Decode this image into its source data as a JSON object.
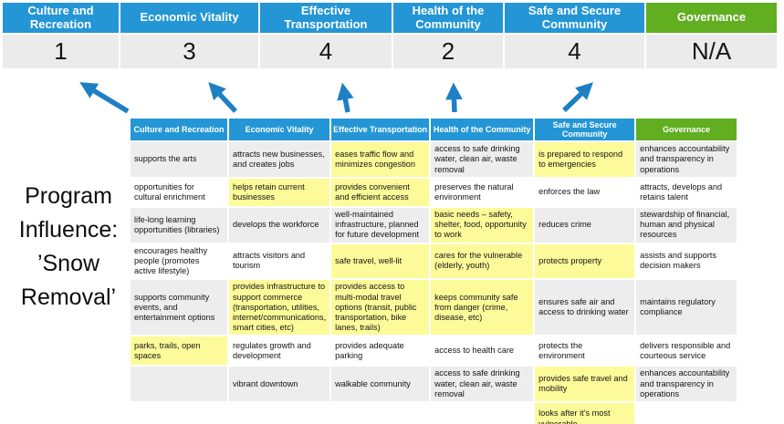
{
  "colors": {
    "header_blue": "#2496D5",
    "header_green": "#61AE21",
    "highlight_yellow": "#FDFB99",
    "row_gray": "#EDEDED",
    "score_bg": "#EBEBEB",
    "arrow_blue": "#1E7FC4"
  },
  "summary": {
    "columns": [
      {
        "label": "Culture and Recreation",
        "score": "1",
        "style": "blue"
      },
      {
        "label": "Economic Vitality",
        "score": "3",
        "style": "blue"
      },
      {
        "label": "Effective Transportation",
        "score": "4",
        "style": "blue"
      },
      {
        "label": "Health of the Community",
        "score": "2",
        "style": "blue"
      },
      {
        "label": "Safe and Secure Community",
        "score": "4",
        "style": "blue"
      },
      {
        "label": "Governance",
        "score": "N/A",
        "style": "green"
      }
    ]
  },
  "program_label": {
    "lines": [
      "Program",
      "Influence:",
      "’Snow",
      "Removal’"
    ]
  },
  "matrix": {
    "headers": [
      {
        "label": "Culture and Recreation",
        "style": "blue"
      },
      {
        "label": "Economic Vitality",
        "style": "blue"
      },
      {
        "label": "Effective Transportation",
        "style": "blue"
      },
      {
        "label": "Health of the Community",
        "style": "blue"
      },
      {
        "label": "Safe and Secure Community",
        "style": "blue"
      },
      {
        "label": "Governance",
        "style": "green"
      }
    ],
    "rows": [
      [
        {
          "text": "supports the arts",
          "highlight": false
        },
        {
          "text": "attracts new businesses, and creates jobs",
          "highlight": false
        },
        {
          "text": "eases traffic flow and minimizes congestion",
          "highlight": true
        },
        {
          "text": "access to safe drinking water, clean air, waste removal",
          "highlight": false
        },
        {
          "text": "is prepared to respond to emergencies",
          "highlight": true
        },
        {
          "text": "enhances accountability and transparency in operations",
          "highlight": false
        }
      ],
      [
        {
          "text": "opportunities for cultural enrichment",
          "highlight": false
        },
        {
          "text": "helps retain current businesses",
          "highlight": true
        },
        {
          "text": "provides convenient and efficient access",
          "highlight": true
        },
        {
          "text": "preserves the natural environment",
          "highlight": false
        },
        {
          "text": "enforces the law",
          "highlight": false
        },
        {
          "text": "attracts, develops and retains talent",
          "highlight": false
        }
      ],
      [
        {
          "text": "life-long learning opportunities (libraries)",
          "highlight": false
        },
        {
          "text": "develops the workforce",
          "highlight": false
        },
        {
          "text": "well-maintained infrastructure, planned for future development",
          "highlight": false
        },
        {
          "text": "basic needs – safety, shelter, food, opportunity to work",
          "highlight": true
        },
        {
          "text": "reduces crime",
          "highlight": false
        },
        {
          "text": "stewardship of financial, human and physical resources",
          "highlight": false
        }
      ],
      [
        {
          "text": "encourages healthy people (promotes active lifestyle)",
          "highlight": false
        },
        {
          "text": "attracts visitors and tourism",
          "highlight": false
        },
        {
          "text": "safe travel, well-lit",
          "highlight": true
        },
        {
          "text": "cares for the vulnerable (elderly, youth)",
          "highlight": true
        },
        {
          "text": "protects property",
          "highlight": true
        },
        {
          "text": "assists and supports decision makers",
          "highlight": false
        }
      ],
      [
        {
          "text": "supports community events, and entertainment options",
          "highlight": false
        },
        {
          "text": "provides infrastructure to support commerce (transportation, utilities, internet/communications, smart cities, etc)",
          "highlight": true
        },
        {
          "text": "provides access to multi-modal travel options (transit, public transportation, bike lanes, trails)",
          "highlight": true
        },
        {
          "text": "keeps community safe from danger (crime, disease, etc)",
          "highlight": true
        },
        {
          "text": "ensures safe air and access to drinking water",
          "highlight": false
        },
        {
          "text": "maintains regulatory compliance",
          "highlight": false
        }
      ],
      [
        {
          "text": "parks, trails, open spaces",
          "highlight": true
        },
        {
          "text": "regulates growth and development",
          "highlight": false
        },
        {
          "text": "provides adequate parking",
          "highlight": false
        },
        {
          "text": "access to health care",
          "highlight": false
        },
        {
          "text": "protects the environment",
          "highlight": false
        },
        {
          "text": "delivers responsible and courteous service",
          "highlight": false
        }
      ],
      [
        {
          "text": "",
          "highlight": false
        },
        {
          "text": "vibrant downtown",
          "highlight": false
        },
        {
          "text": "walkable community",
          "highlight": false
        },
        {
          "text": "access to safe drinking water, clean air, waste removal",
          "highlight": false
        },
        {
          "text": "provides safe travel and mobility",
          "highlight": true
        },
        {
          "text": "enhances accountability and transparency in operations",
          "highlight": false
        }
      ],
      [
        {
          "text": "",
          "highlight": false
        },
        {
          "text": "",
          "highlight": false
        },
        {
          "text": "",
          "highlight": false
        },
        {
          "text": "",
          "highlight": false
        },
        {
          "text": "looks after it's most vulnerable",
          "highlight": true
        },
        {
          "text": "",
          "highlight": false
        }
      ]
    ]
  }
}
